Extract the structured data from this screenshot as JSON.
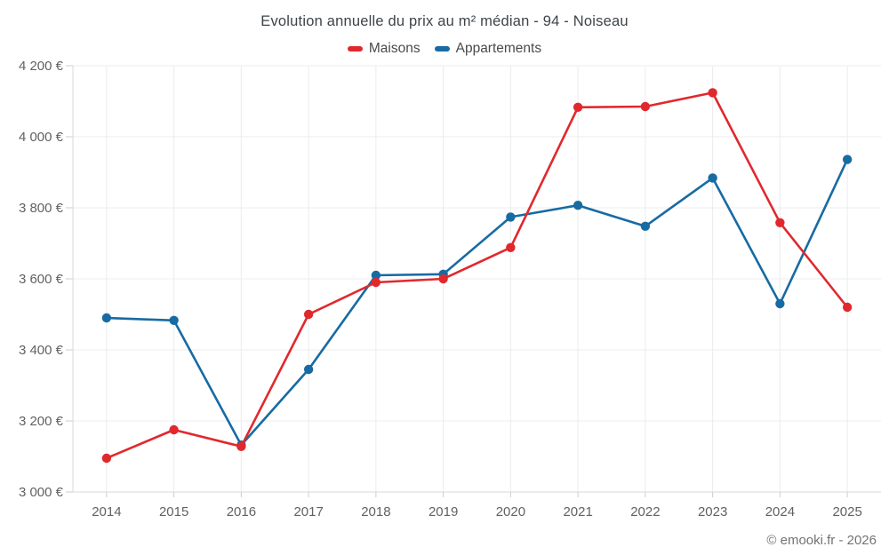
{
  "title": "Evolution annuelle du prix au m² médian - 94 - Noiseau",
  "footer": "© emooki.fr - 2026",
  "chart_data": {
    "type": "line",
    "title": "Evolution annuelle du prix au m² médian - 94 - Noiseau",
    "categories": [
      "2014",
      "2015",
      "2016",
      "2017",
      "2018",
      "2019",
      "2020",
      "2021",
      "2022",
      "2023",
      "2024",
      "2025"
    ],
    "series": [
      {
        "name": "Maisons",
        "color": "#e1282d",
        "values": [
          3095,
          3175,
          3128,
          3500,
          3590,
          3600,
          3688,
          4083,
          4085,
          4124,
          3758,
          3520
        ]
      },
      {
        "name": "Appartements",
        "color": "#176ba3",
        "values": [
          3490,
          3483,
          3132,
          3345,
          3610,
          3613,
          3774,
          3807,
          3748,
          3884,
          3530,
          3936
        ]
      }
    ],
    "xlabel": "",
    "ylabel": "",
    "ylim": [
      3000,
      4200
    ],
    "ytick": 200,
    "y_unit": "€",
    "legend_position": "top",
    "grid": "on"
  },
  "style": {
    "grid_color": "#ececec",
    "axis_color": "#d9d9d9",
    "tick_color": "#cccccc"
  }
}
